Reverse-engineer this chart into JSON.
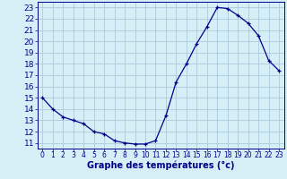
{
  "x": [
    0,
    1,
    2,
    3,
    4,
    5,
    6,
    7,
    8,
    9,
    10,
    11,
    12,
    13,
    14,
    15,
    16,
    17,
    18,
    19,
    20,
    21,
    22,
    23
  ],
  "y": [
    15,
    14,
    13.3,
    13,
    12.7,
    12,
    11.8,
    11.2,
    11.0,
    10.9,
    10.9,
    11.2,
    13.4,
    16.4,
    18.0,
    19.8,
    21.3,
    23.0,
    22.9,
    22.3,
    21.6,
    20.5,
    18.3,
    17.4
  ],
  "line_color": "#00008b",
  "marker_color": "#00008b",
  "bg_color": "#d6eef5",
  "grid_color": "#aaccdd",
  "xlabel": "Graphe des températures (°c)",
  "ylabel_ticks": [
    11,
    12,
    13,
    14,
    15,
    16,
    17,
    18,
    19,
    20,
    21,
    22,
    23
  ],
  "xlim": [
    -0.5,
    23.5
  ],
  "ylim": [
    10.5,
    23.5
  ],
  "axis_label_color": "#00008b",
  "xlabel_fontsize": 7,
  "xtick_fontsize": 5.5,
  "ytick_fontsize": 6.5
}
